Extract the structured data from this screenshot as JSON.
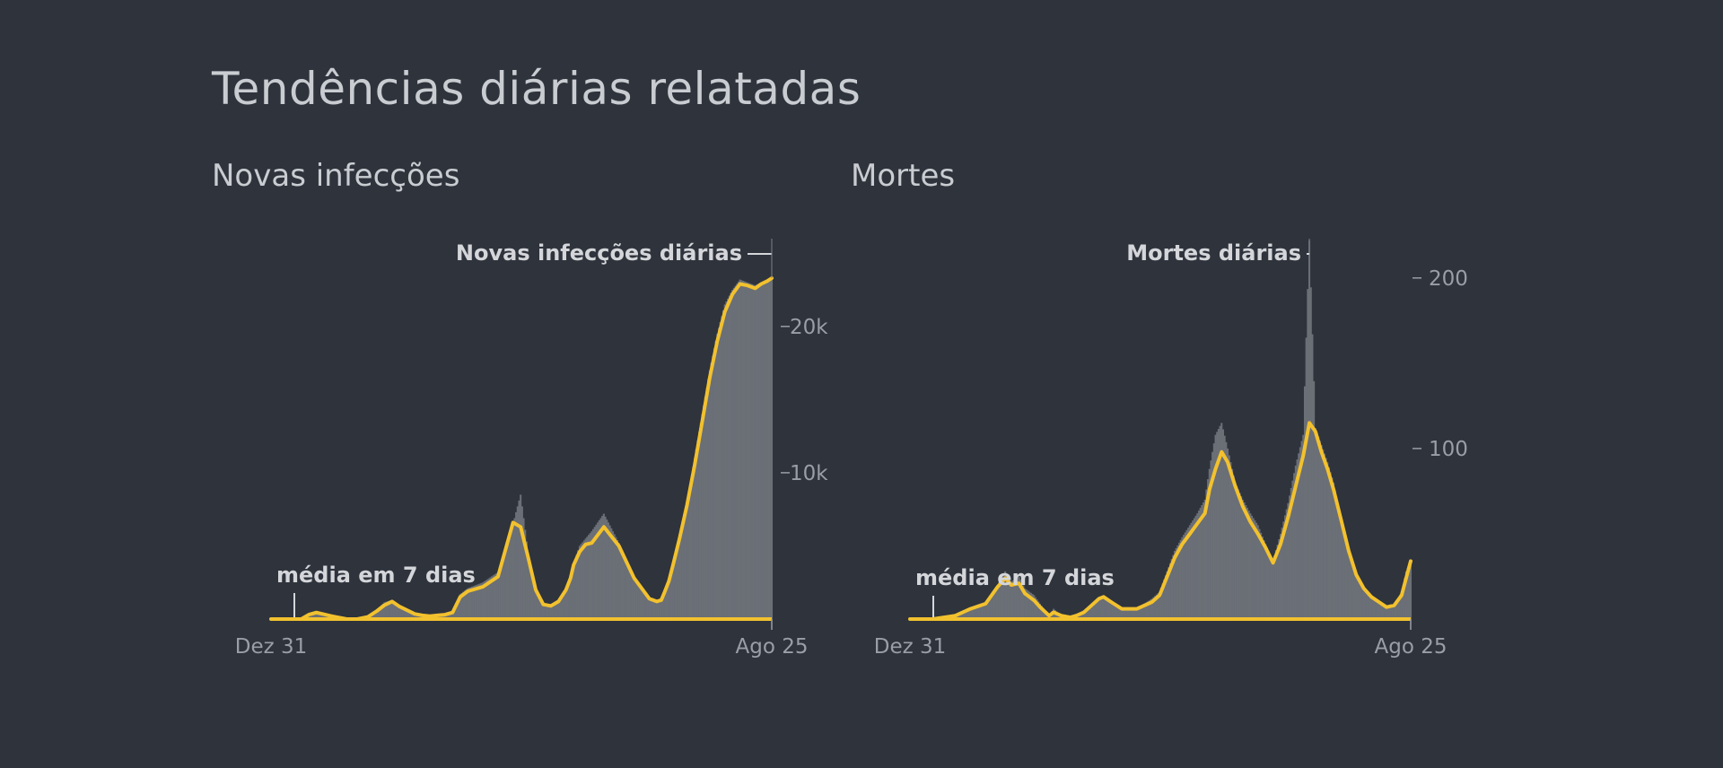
{
  "page": {
    "title": "Tendências diárias relatadas"
  },
  "colors": {
    "background": "#2e333c",
    "average_line": "#f2c12e",
    "daily_bars": "#6b6f76",
    "text": "#c9ccd1",
    "tick_text": "#9a9ea6",
    "axis": "#f2c12e"
  },
  "chart_data": [
    {
      "type": "area",
      "title": "Novas infecções",
      "x_start_label": "Dez 31",
      "x_end_label": "Ago 25",
      "y_ticks": [
        {
          "value": 10000,
          "label": "10k"
        },
        {
          "value": 20000,
          "label": "20k"
        }
      ],
      "ylim": [
        0,
        23300
      ],
      "annotations": {
        "daily_series_label": "Novas infecções diárias",
        "average_label": "média em 7 dias"
      },
      "series": [
        {
          "name": "Novas infecções diárias",
          "kind": "daily",
          "x": [
            0,
            20,
            25,
            30,
            40,
            50,
            57,
            64,
            70,
            75,
            80,
            85,
            95,
            100,
            105,
            110,
            115,
            120,
            125,
            130,
            140,
            150,
            160,
            165,
            170,
            175,
            180,
            185,
            190,
            195,
            198,
            200,
            204,
            208,
            212,
            220,
            230,
            240,
            250,
            255,
            258,
            260,
            263,
            266,
            270,
            275,
            280,
            285,
            290,
            295,
            300,
            305,
            310,
            315,
            320,
            324,
            328,
            331
          ],
          "values": [
            0,
            0,
            350,
            550,
            200,
            0,
            0,
            150,
            650,
            1150,
            1300,
            900,
            400,
            250,
            200,
            300,
            350,
            500,
            1700,
            2100,
            2500,
            3200,
            6500,
            8500,
            4500,
            2000,
            1000,
            900,
            1200,
            2000,
            2800,
            3800,
            5000,
            5500,
            6000,
            7200,
            5200,
            2800,
            1400,
            1200,
            1300,
            1800,
            2600,
            4000,
            5800,
            8000,
            11000,
            14000,
            17000,
            19500,
            21500,
            22500,
            23200,
            23000,
            22800,
            23000,
            23200,
            23300
          ]
        },
        {
          "name": "média em 7 dias",
          "kind": "average",
          "x": [
            0,
            20,
            25,
            30,
            40,
            50,
            57,
            64,
            70,
            75,
            80,
            85,
            95,
            100,
            105,
            110,
            115,
            120,
            125,
            130,
            140,
            150,
            160,
            165,
            170,
            175,
            180,
            185,
            190,
            195,
            198,
            200,
            204,
            208,
            212,
            220,
            230,
            240,
            250,
            255,
            258,
            260,
            263,
            266,
            270,
            275,
            280,
            285,
            290,
            295,
            300,
            305,
            310,
            315,
            320,
            324,
            328,
            331
          ],
          "values": [
            0,
            0,
            300,
            450,
            200,
            0,
            0,
            150,
            550,
            950,
            1200,
            850,
            350,
            250,
            200,
            250,
            300,
            450,
            1500,
            1900,
            2200,
            2900,
            6600,
            6300,
            4200,
            2000,
            1000,
            900,
            1200,
            2000,
            2800,
            3700,
            4600,
            5100,
            5200,
            6300,
            5000,
            2800,
            1400,
            1200,
            1300,
            1800,
            2600,
            3800,
            5500,
            7800,
            10500,
            13500,
            16500,
            19000,
            21000,
            22200,
            22900,
            22800,
            22600,
            22900,
            23100,
            23300
          ]
        }
      ]
    },
    {
      "type": "area",
      "title": "Mortes",
      "x_start_label": "Dez 31",
      "x_end_label": "Ago 25",
      "y_ticks": [
        {
          "value": 100,
          "label": "100"
        },
        {
          "value": 200,
          "label": "200"
        }
      ],
      "ylim": [
        0,
        222
      ],
      "annotations": {
        "daily_series_label": "Mortes diárias",
        "average_label": "média em 7 dias"
      },
      "series": [
        {
          "name": "Mortes diárias",
          "kind": "daily",
          "x": [
            0,
            15,
            30,
            40,
            50,
            58,
            63,
            67,
            72,
            76,
            82,
            86,
            92,
            95,
            100,
            106,
            110,
            115,
            120,
            125,
            128,
            133,
            140,
            150,
            160,
            165,
            175,
            180,
            185,
            190,
            195,
            198,
            202,
            206,
            210,
            215,
            220,
            225,
            230,
            235,
            240,
            245,
            250,
            255,
            260,
            264,
            268,
            272,
            276,
            280,
            285,
            290,
            295,
            300,
            305,
            310,
            315,
            320,
            325,
            328,
            331
          ],
          "values": [
            0,
            0,
            3,
            7,
            10,
            20,
            28,
            22,
            25,
            18,
            14,
            9,
            2,
            6,
            2,
            1,
            3,
            4,
            8,
            12,
            14,
            11,
            6,
            6,
            12,
            16,
            40,
            48,
            55,
            62,
            70,
            88,
            108,
            115,
            100,
            80,
            70,
            62,
            55,
            44,
            34,
            50,
            68,
            90,
            108,
            222,
            112,
            102,
            92,
            80,
            58,
            42,
            27,
            18,
            12,
            10,
            6,
            8,
            16,
            28,
            34
          ]
        },
        {
          "name": "média em 7 dias",
          "kind": "average",
          "x": [
            0,
            15,
            30,
            40,
            50,
            58,
            63,
            67,
            72,
            76,
            82,
            86,
            92,
            95,
            100,
            106,
            110,
            115,
            120,
            125,
            128,
            133,
            140,
            150,
            160,
            165,
            175,
            180,
            185,
            190,
            195,
            198,
            202,
            206,
            210,
            215,
            220,
            225,
            230,
            235,
            240,
            245,
            250,
            255,
            260,
            264,
            268,
            272,
            276,
            280,
            285,
            290,
            295,
            300,
            305,
            310,
            315,
            320,
            325,
            328,
            331
          ],
          "values": [
            0,
            0,
            2,
            6,
            9,
            19,
            24,
            20,
            21,
            15,
            11,
            7,
            2,
            4,
            2,
            1,
            2,
            4,
            8,
            12,
            13,
            10,
            6,
            6,
            10,
            14,
            36,
            44,
            50,
            56,
            62,
            76,
            88,
            98,
            92,
            78,
            66,
            57,
            50,
            42,
            33,
            44,
            60,
            78,
            96,
            115,
            110,
            98,
            88,
            76,
            58,
            40,
            26,
            18,
            13,
            10,
            7,
            8,
            14,
            24,
            34
          ]
        }
      ]
    }
  ]
}
